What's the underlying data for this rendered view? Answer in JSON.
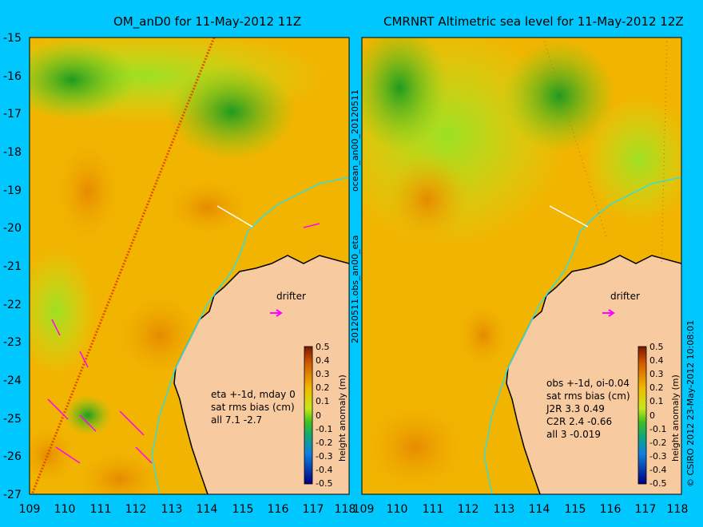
{
  "left_panel": {
    "title": "OM_anD0 for 11-May-2012 11Z",
    "note_lines": [
      "eta +-1d, mday 0",
      "sat rms bias (cm)",
      "all 7.1 -2.7"
    ],
    "side_label": "20120511.obs_an00_eta"
  },
  "right_panel": {
    "title": "CMRNRT Altimetric sea level  for 11-May-2012 12Z",
    "note_lines": [
      "obs +-1d, oi-0.04",
      "sat rms bias (cm)",
      "J2R   3.3 0.49",
      "C2R   2.4 -0.66",
      "all 3 -0.019"
    ],
    "side_label": "ocean_an00_20120511",
    "credit": "© CSIRO 2012   23-May-2012 10:08:01"
  },
  "drifter_label": "drifter",
  "colorbar": {
    "label": "height anomaly (m)",
    "ticks": [
      "0.5",
      "0.4",
      "0.3",
      "0.2",
      "0.1",
      "0",
      "-0.1",
      "-0.2",
      "-0.3",
      "-0.4",
      "-0.5"
    ]
  },
  "axes": {
    "x_ticks": [
      "109",
      "110",
      "111",
      "112",
      "113",
      "114",
      "115",
      "116",
      "117",
      "118"
    ],
    "y_ticks": [
      "-15",
      "-16",
      "-17",
      "-18",
      "-19",
      "-20",
      "-21",
      "-22",
      "-23",
      "-24",
      "-25",
      "-26",
      "-27"
    ]
  },
  "colors": {
    "land": "#f8caa0",
    "ocean_low": "#0a8a1a",
    "ocean_mid": "#90e020",
    "ocean_high": "#e89000",
    "drifter": "#ff00ff",
    "coast_track": "#33dddd",
    "background": "#00c8ff"
  }
}
